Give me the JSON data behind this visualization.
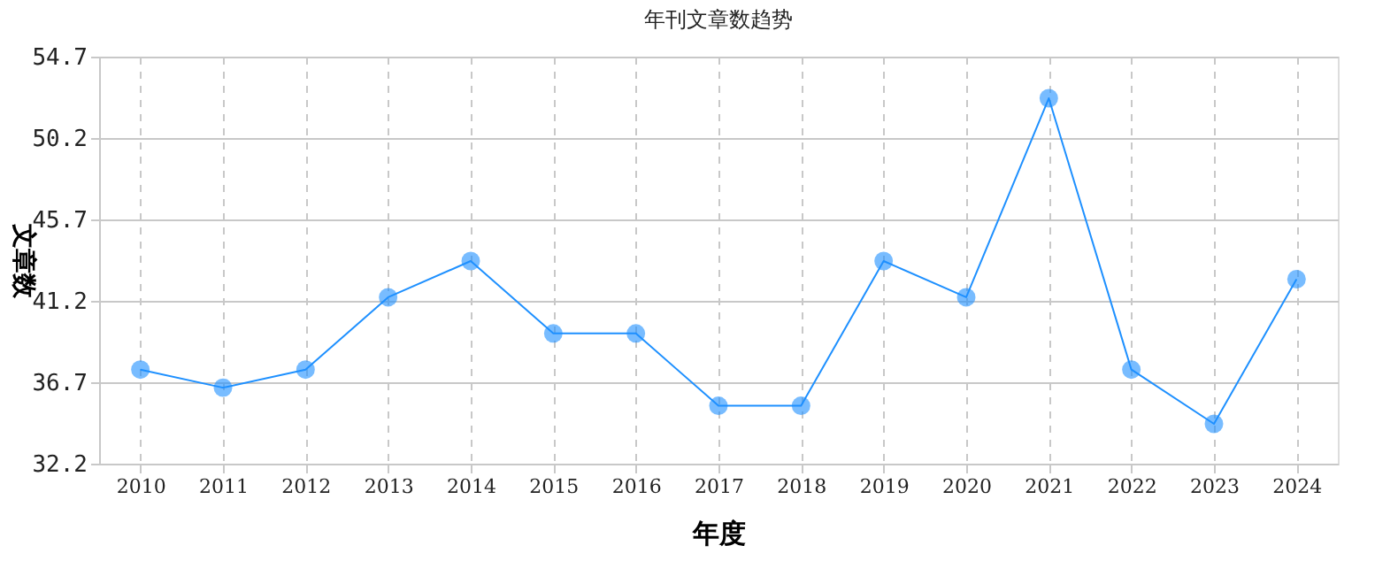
{
  "chart_data": {
    "type": "line",
    "title": "年刊文章数趋势",
    "xlabel": "年度",
    "ylabel": "文章数",
    "categories": [
      "2010",
      "2011",
      "2012",
      "2013",
      "2014",
      "2015",
      "2016",
      "2017",
      "2018",
      "2019",
      "2020",
      "2021",
      "2022",
      "2023",
      "2024"
    ],
    "series": [
      {
        "color": "#1e90ff",
        "values": [
          37.4,
          36.4,
          37.4,
          41.4,
          43.4,
          39.4,
          39.4,
          35.4,
          35.4,
          43.4,
          41.4,
          52.4,
          37.4,
          34.4,
          42.4
        ]
      }
    ],
    "ylim": [
      32.2,
      54.7
    ],
    "yticks": [
      32.2,
      36.7,
      41.2,
      45.7,
      50.2,
      54.7
    ],
    "grid": true,
    "marker": "circle"
  }
}
